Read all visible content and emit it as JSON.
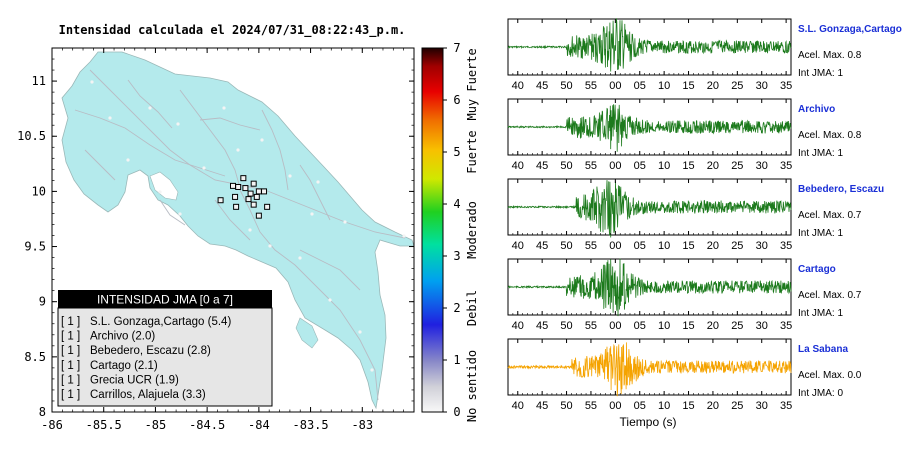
{
  "header": {
    "title": "Intensidad calculada el 2024/07/31_08:22:43_p.m."
  },
  "map": {
    "lat_ticks": [
      "11",
      "10.5",
      "10",
      "9.5",
      "9",
      "8.5",
      "8"
    ],
    "lon_ticks": [
      "-86",
      "-85.5",
      "-85",
      "-84.5",
      "-84",
      "-83.5",
      "-83"
    ],
    "land_color": "#b4eaec",
    "sea_color": "#ffffff"
  },
  "colorbar": {
    "ticks": [
      "0",
      "1",
      "2",
      "3",
      "4",
      "5",
      "6",
      "7"
    ],
    "labels": [
      "No sentido",
      "Debil",
      "Moderado",
      "Fuerte",
      "Muy Fuerte"
    ]
  },
  "legend": {
    "title": "INTENSIDAD JMA [0 a 7]",
    "items": [
      {
        "level": "[ 1 ]",
        "station": "S.L. Gonzaga,Cartago (5.4)"
      },
      {
        "level": "[ 1 ]",
        "station": "Archivo (2.0)"
      },
      {
        "level": "[ 1 ]",
        "station": "Bebedero, Escazu (2.8)"
      },
      {
        "level": "[ 1 ]",
        "station": "Cartago (2.1)"
      },
      {
        "level": "[ 1 ]",
        "station": "Grecia UCR (1.9)"
      },
      {
        "level": "[ 1 ]",
        "station": "Carrillos, Alajuela (3.3)"
      }
    ]
  },
  "panels": [
    {
      "name": "S.L. Gonzaga,Cartago",
      "accel": "Acel. Max. 0.8",
      "jma": "Int JMA: 1",
      "color": "#1c7a1c",
      "ticks": [
        "40",
        "45",
        "50",
        "55",
        "00",
        "05",
        "10",
        "15",
        "20",
        "25",
        "30",
        "35"
      ]
    },
    {
      "name": "Archivo",
      "accel": "Acel. Max. 0.8",
      "jma": "Int JMA: 1",
      "color": "#1c7a1c",
      "ticks": [
        "40",
        "45",
        "50",
        "55",
        "00",
        "05",
        "10",
        "15",
        "20",
        "25",
        "30",
        "35"
      ]
    },
    {
      "name": "Bebedero, Escazu",
      "accel": "Acel. Max. 0.7",
      "jma": "Int JMA: 1",
      "color": "#1c7a1c",
      "ticks": [
        "40",
        "45",
        "50",
        "55",
        "00",
        "05",
        "10",
        "15",
        "20",
        "25",
        "30",
        "35"
      ]
    },
    {
      "name": "Cartago",
      "accel": "Acel. Max. 0.7",
      "jma": "Int JMA: 1",
      "color": "#1c7a1c",
      "ticks": [
        "40",
        "45",
        "50",
        "55",
        "00",
        "05",
        "10",
        "15",
        "20",
        "25",
        "30",
        "35"
      ]
    },
    {
      "name": "La Sabana",
      "accel": "Acel. Max. 0.0",
      "jma": "Int JMA: 0",
      "color": "#f5a300",
      "ticks": [
        "40",
        "45",
        "50",
        "55",
        "00",
        "05",
        "10",
        "15",
        "20",
        "25",
        "30",
        "35"
      ]
    }
  ],
  "xlabel": "Tiempo (s)",
  "chart_data": [
    {
      "type": "scatter",
      "title": "Intensidad calculada el 2024/07/31_08:22:43_p.m.",
      "xlim": [
        -86,
        -82.5
      ],
      "ylim": [
        8,
        11.3
      ],
      "station_markers": [
        {
          "lon": -84.15,
          "lat": 10.12
        },
        {
          "lon": -84.25,
          "lat": 10.05
        },
        {
          "lon": -84.2,
          "lat": 10.04
        },
        {
          "lon": -84.13,
          "lat": 10.03
        },
        {
          "lon": -84.05,
          "lat": 10.07
        },
        {
          "lon": -84.0,
          "lat": 10.0
        },
        {
          "lon": -83.95,
          "lat": 10.0
        },
        {
          "lon": -84.08,
          "lat": 9.98
        },
        {
          "lon": -84.02,
          "lat": 9.95
        },
        {
          "lon": -84.1,
          "lat": 9.93
        },
        {
          "lon": -84.23,
          "lat": 9.95
        },
        {
          "lon": -84.37,
          "lat": 9.92
        },
        {
          "lon": -83.92,
          "lat": 9.86
        },
        {
          "lon": -84.05,
          "lat": 9.88
        },
        {
          "lon": -84.0,
          "lat": 9.78
        },
        {
          "lon": -84.22,
          "lat": 9.86
        }
      ]
    },
    {
      "type": "line",
      "title": "",
      "xlabel": "Tiempo (s)",
      "ylabel": "",
      "series": [
        {
          "name": "S.L. Gonzaga,Cartago",
          "onset_s": 50,
          "peak_s": 60,
          "amplitude": 1.0
        },
        {
          "name": "Archivo",
          "onset_s": 50,
          "peak_s": 60,
          "amplitude": 0.75
        },
        {
          "name": "Bebedero, Escazu",
          "onset_s": 52,
          "peak_s": 59,
          "amplitude": 0.9
        },
        {
          "name": "Cartago",
          "onset_s": 50,
          "peak_s": 60,
          "amplitude": 1.0
        },
        {
          "name": "La Sabana",
          "onset_s": 51,
          "peak_s": 61,
          "amplitude": 0.95
        }
      ]
    }
  ]
}
